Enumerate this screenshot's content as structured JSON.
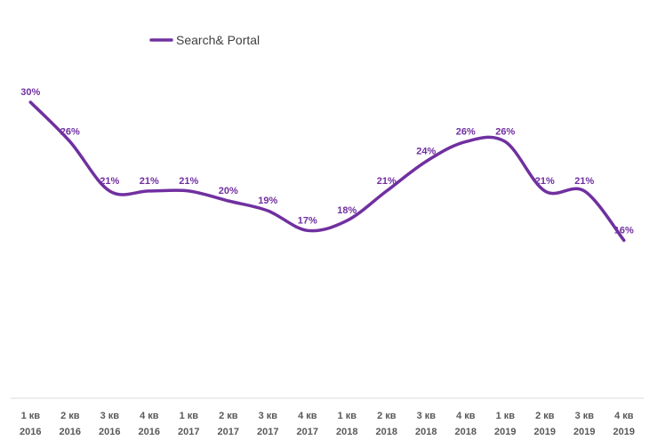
{
  "chart_data": {
    "type": "line",
    "title": "",
    "xlabel": "",
    "ylabel": "",
    "ylim": [
      0,
      36
    ],
    "grid": false,
    "legend_position": "top-left",
    "categories": [
      [
        "1 кв",
        "2016"
      ],
      [
        "2 кв",
        "2016"
      ],
      [
        "3 кв",
        "2016"
      ],
      [
        "4 кв",
        "2016"
      ],
      [
        "1 кв",
        "2017"
      ],
      [
        "2 кв",
        "2017"
      ],
      [
        "3 кв",
        "2017"
      ],
      [
        "4 кв",
        "2017"
      ],
      [
        "1 кв",
        "2018"
      ],
      [
        "2 кв",
        "2018"
      ],
      [
        "3 кв",
        "2018"
      ],
      [
        "4 кв",
        "2018"
      ],
      [
        "1 кв",
        "2019"
      ],
      [
        "2 кв",
        "2019"
      ],
      [
        "3 кв",
        "2019"
      ],
      [
        "4 кв",
        "2019"
      ]
    ],
    "series": [
      {
        "name": "Search& Portal",
        "color": "#7030A0",
        "values": [
          30,
          26,
          21,
          21,
          21,
          20,
          19,
          17,
          18,
          21,
          24,
          26,
          26,
          21,
          21,
          16
        ],
        "labels": [
          "30%",
          "26%",
          "21%",
          "21%",
          "21%",
          "20%",
          "19%",
          "17%",
          "18%",
          "21%",
          "24%",
          "26%",
          "26%",
          "21%",
          "21%",
          "16%"
        ]
      }
    ],
    "axis_color": "#D9D9D9"
  }
}
